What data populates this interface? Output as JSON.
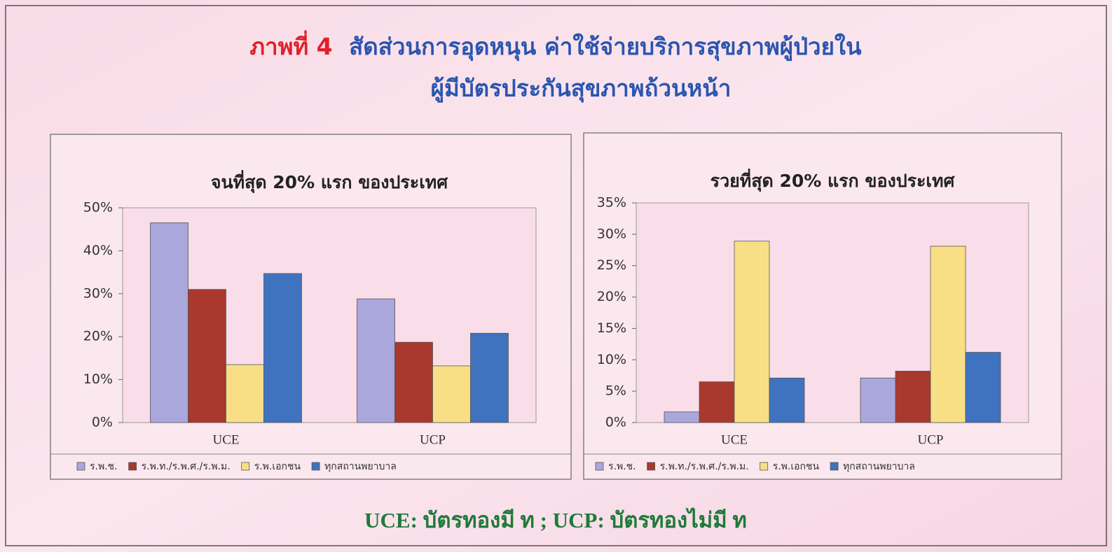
{
  "header": {
    "prefix": "ภาพที่ 4",
    "line1": "สัดส่วนการอุดหนุน ค่าใช้จ่ายบริการสุขภาพผู้ป่วยใน",
    "line2": "ผู้มีบัตรประกันสุขภาพถ้วนหน้า"
  },
  "chart_data": [
    {
      "type": "bar",
      "title": "จนที่สุด 20% แรก ของประเทศ",
      "categories": [
        "UCE",
        "UCP"
      ],
      "series": [
        {
          "name": "ร.พ.ช.",
          "color": "#a9a7dc",
          "values": [
            46.5,
            28.8
          ]
        },
        {
          "name": "ร.พ.ท./ร.พ.ศ./ร.พ.ม.",
          "color": "#a8392c",
          "values": [
            31,
            18.7
          ]
        },
        {
          "name": "ร.พ.เอกชน",
          "color": "#f8df86",
          "values": [
            13.5,
            13.2
          ]
        },
        {
          "name": "ทุกสถานพยาบาล",
          "color": "#3f73c0",
          "values": [
            34.7,
            20.8
          ]
        }
      ],
      "ylim": [
        0,
        50
      ],
      "yticks": [
        {
          "value": 0,
          "label": "0%"
        },
        {
          "value": 10,
          "label": "10%"
        },
        {
          "value": 20,
          "label": "20%"
        },
        {
          "value": 30,
          "label": "30%"
        },
        {
          "value": 40,
          "label": "40%"
        },
        {
          "value": 50,
          "label": "50%"
        }
      ],
      "grid": false,
      "legend": "bottom"
    },
    {
      "type": "bar",
      "title": "รวยที่สุด 20% แรก ของประเทศ",
      "categories": [
        "UCE",
        "UCP"
      ],
      "series": [
        {
          "name": "ร.พ.ช.",
          "color": "#a9a7dc",
          "values": [
            1.7,
            7.1
          ]
        },
        {
          "name": "ร.พ.ท./ร.พ.ศ./ร.พ.ม.",
          "color": "#a8392c",
          "values": [
            6.5,
            8.2
          ]
        },
        {
          "name": "ร.พ.เอกชน",
          "color": "#f8df86",
          "values": [
            28.9,
            28.1
          ]
        },
        {
          "name": "ทุกสถานพยาบาล",
          "color": "#3f73c0",
          "values": [
            7.1,
            11.2
          ]
        }
      ],
      "ylim": [
        0,
        35
      ],
      "yticks": [
        {
          "value": 0,
          "label": "0%"
        },
        {
          "value": 5,
          "label": "5%"
        },
        {
          "value": 10,
          "label": "10%"
        },
        {
          "value": 15,
          "label": "15%"
        },
        {
          "value": 20,
          "label": "20%"
        },
        {
          "value": 25,
          "label": "25%"
        },
        {
          "value": 30,
          "label": "30%"
        },
        {
          "value": 35,
          "label": "35%"
        }
      ],
      "grid": false,
      "legend": "bottom"
    }
  ],
  "footnote": "UCE: บัตรทองมี ท ; UCP: บัตรทองไม่มี ท"
}
